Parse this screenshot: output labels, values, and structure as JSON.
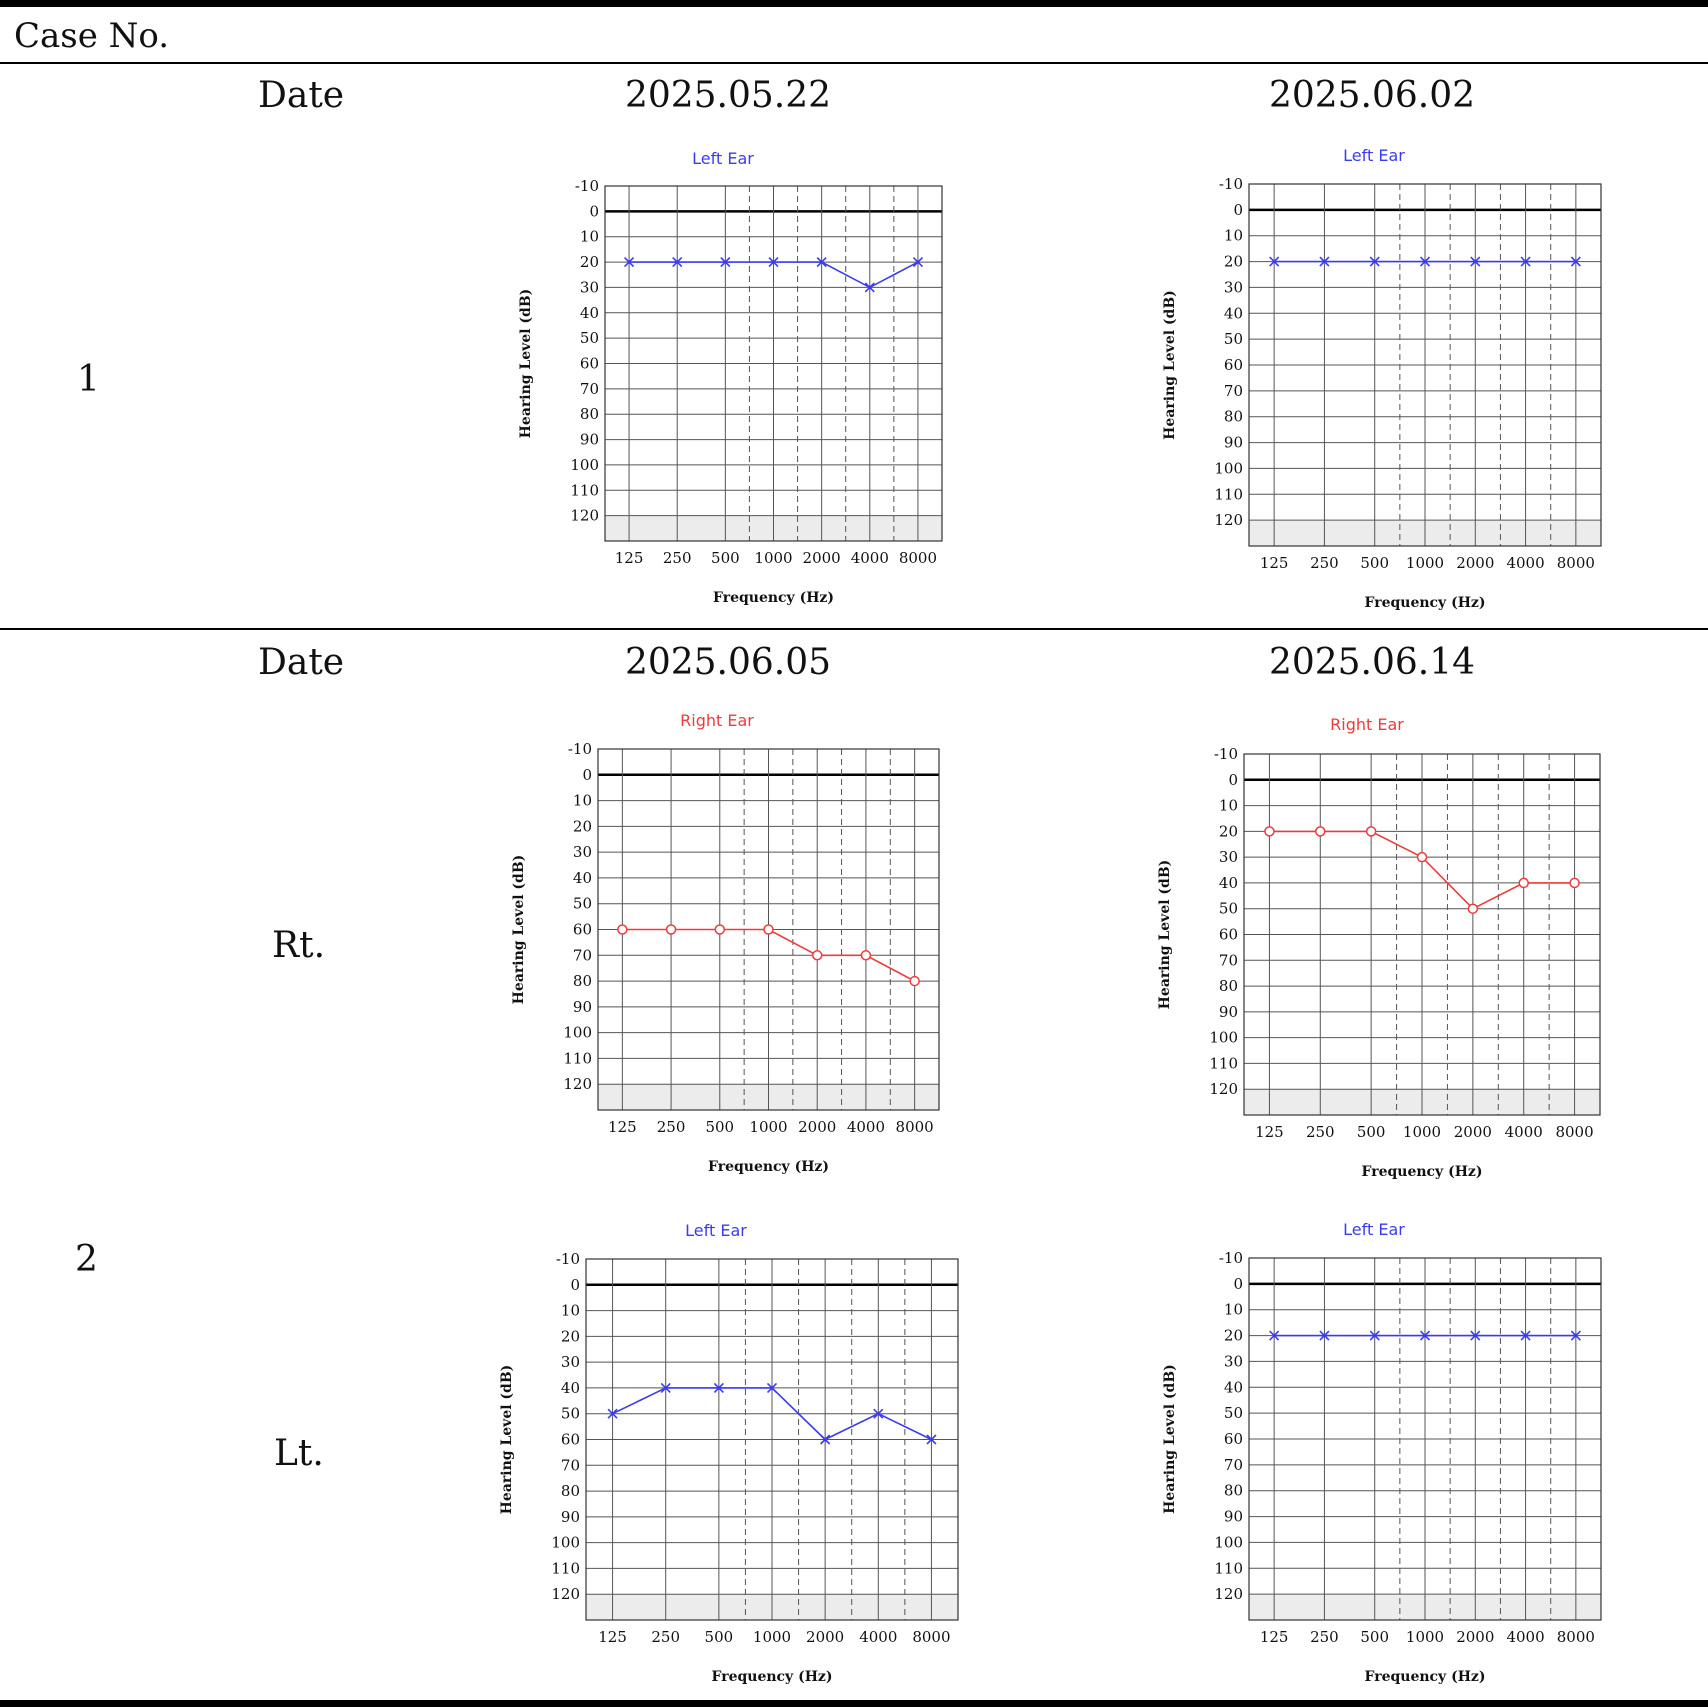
{
  "header": {
    "case_label": "Case  No."
  },
  "rows": [
    {
      "case_number": "1",
      "date_label": "Date",
      "dates": [
        "2025.05.22",
        "2025.06.02"
      ],
      "ear_labels": []
    },
    {
      "case_number": "2",
      "date_label": "Date",
      "dates": [
        "2025.06.05",
        "2025.06.14"
      ],
      "ear_labels": [
        "Rt.",
        "Lt."
      ]
    }
  ],
  "colors": {
    "left_ear": "#3b3bf0",
    "right_ear": "#ee3b3b",
    "shade": "#ececec",
    "grid": "#555555"
  },
  "chart_data": [
    {
      "type": "line",
      "title": "Left Ear",
      "marker": "x",
      "color": "#3b3bf0",
      "categories": [
        "125",
        "250",
        "500",
        "1000",
        "2000",
        "4000",
        "8000"
      ],
      "values": [
        20,
        20,
        20,
        20,
        20,
        30,
        20
      ],
      "xlabel": "Frequency (Hz)",
      "ylabel": "Hearing Level (dB)",
      "yticks": [
        -10,
        0,
        10,
        20,
        30,
        40,
        50,
        60,
        70,
        80,
        90,
        100,
        110,
        120
      ],
      "ylim": [
        -10,
        130
      ],
      "grid": true
    },
    {
      "type": "line",
      "title": "Left Ear",
      "marker": "x",
      "color": "#3b3bf0",
      "categories": [
        "125",
        "250",
        "500",
        "1000",
        "2000",
        "4000",
        "8000"
      ],
      "values": [
        20,
        20,
        20,
        20,
        20,
        20,
        20
      ],
      "xlabel": "Frequency (Hz)",
      "ylabel": "Hearing Level (dB)",
      "yticks": [
        -10,
        0,
        10,
        20,
        30,
        40,
        50,
        60,
        70,
        80,
        90,
        100,
        110,
        120
      ],
      "ylim": [
        -10,
        130
      ],
      "grid": true
    },
    {
      "type": "line",
      "title": "Right Ear",
      "marker": "o",
      "color": "#ee3b3b",
      "categories": [
        "125",
        "250",
        "500",
        "1000",
        "2000",
        "4000",
        "8000"
      ],
      "values": [
        60,
        60,
        60,
        60,
        70,
        70,
        80
      ],
      "xlabel": "Frequency (Hz)",
      "ylabel": "Hearing Level (dB)",
      "yticks": [
        -10,
        0,
        10,
        20,
        30,
        40,
        50,
        60,
        70,
        80,
        90,
        100,
        110,
        120
      ],
      "ylim": [
        -10,
        130
      ],
      "grid": true
    },
    {
      "type": "line",
      "title": "Right Ear",
      "marker": "o",
      "color": "#ee3b3b",
      "categories": [
        "125",
        "250",
        "500",
        "1000",
        "2000",
        "4000",
        "8000"
      ],
      "values": [
        20,
        20,
        20,
        30,
        50,
        40,
        40
      ],
      "xlabel": "Frequency (Hz)",
      "ylabel": "Hearing Level (dB)",
      "yticks": [
        -10,
        0,
        10,
        20,
        30,
        40,
        50,
        60,
        70,
        80,
        90,
        100,
        110,
        120
      ],
      "ylim": [
        -10,
        130
      ],
      "grid": true
    },
    {
      "type": "line",
      "title": "Left Ear",
      "marker": "x",
      "color": "#3b3bf0",
      "categories": [
        "125",
        "250",
        "500",
        "1000",
        "2000",
        "4000",
        "8000"
      ],
      "values": [
        50,
        40,
        40,
        40,
        60,
        50,
        60
      ],
      "xlabel": "Frequency (Hz)",
      "ylabel": "Hearing Level (dB)",
      "yticks": [
        -10,
        0,
        10,
        20,
        30,
        40,
        50,
        60,
        70,
        80,
        90,
        100,
        110,
        120
      ],
      "ylim": [
        -10,
        130
      ],
      "grid": true
    },
    {
      "type": "line",
      "title": "Left Ear",
      "marker": "x",
      "color": "#3b3bf0",
      "categories": [
        "125",
        "250",
        "500",
        "1000",
        "2000",
        "4000",
        "8000"
      ],
      "values": [
        20,
        20,
        20,
        20,
        20,
        20,
        20
      ],
      "xlabel": "Frequency (Hz)",
      "ylabel": "Hearing Level (dB)",
      "yticks": [
        -10,
        0,
        10,
        20,
        30,
        40,
        50,
        60,
        70,
        80,
        90,
        100,
        110,
        120
      ],
      "ylim": [
        -10,
        130
      ],
      "grid": true
    }
  ]
}
